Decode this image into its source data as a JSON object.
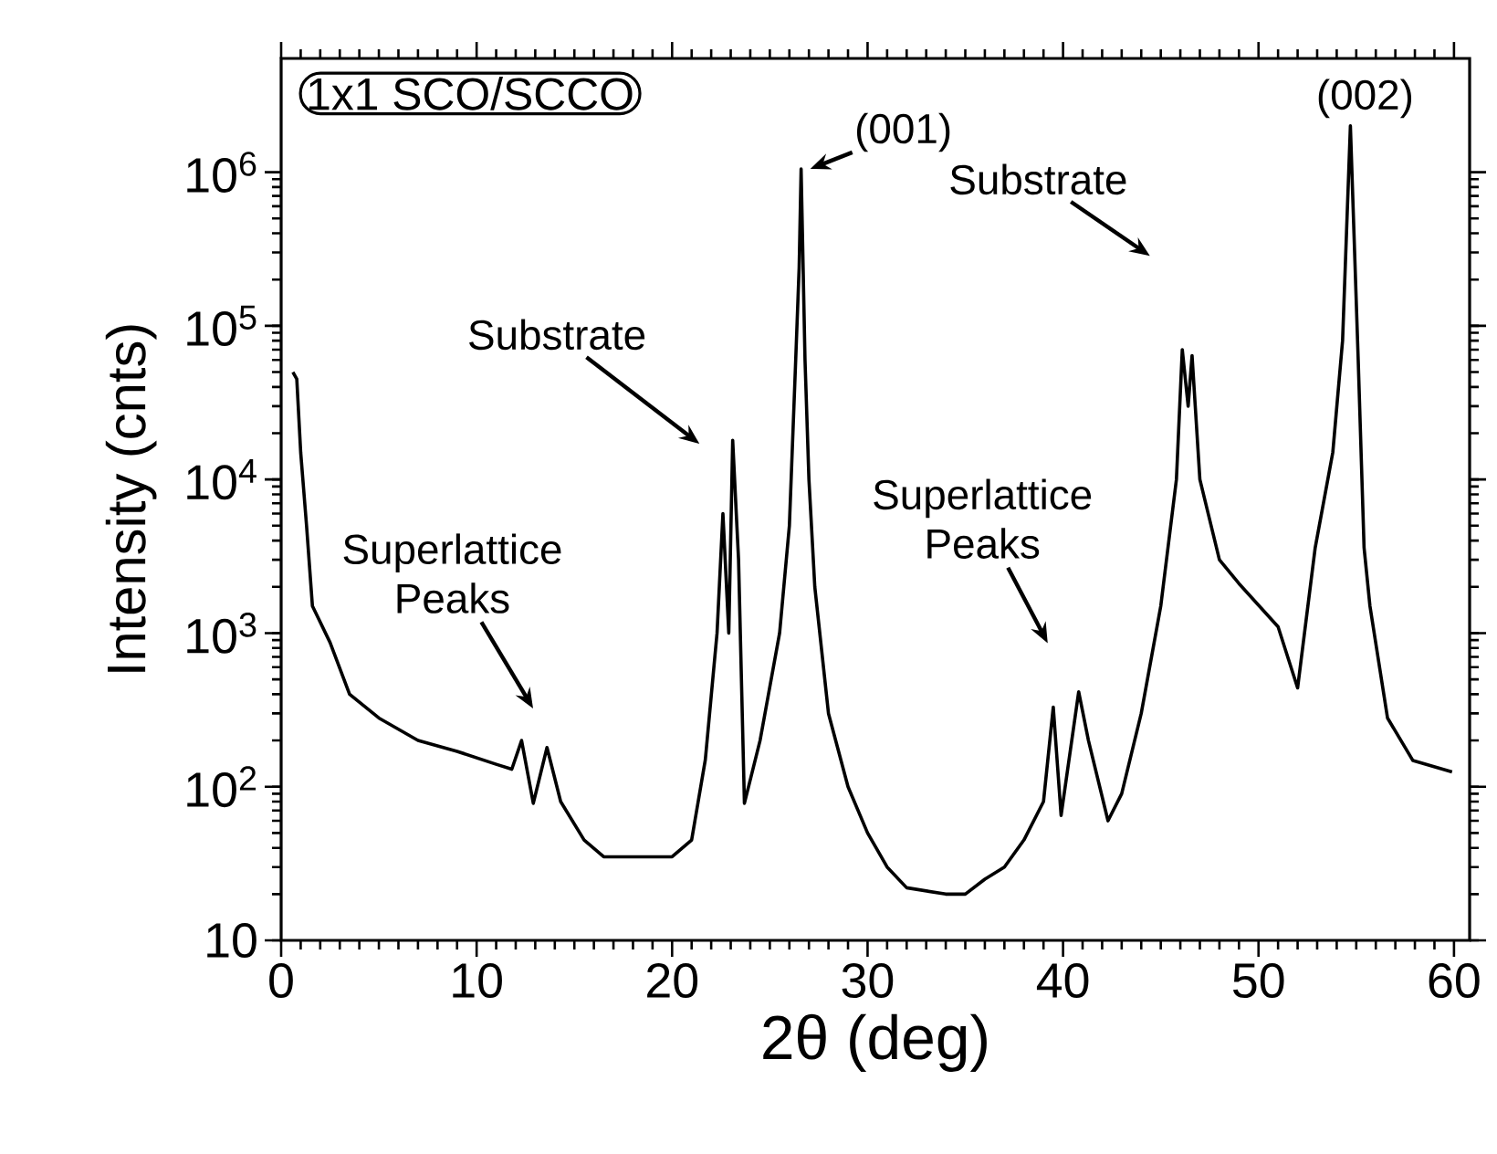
{
  "chart_data": {
    "type": "line",
    "xlabel": "2θ  (deg)",
    "ylabel": "Intensity  (cnts)",
    "color": "#000000",
    "log": "y",
    "xlim": [
      0,
      60.8
    ],
    "ylim": [
      10,
      5500000
    ],
    "xticks": [
      0,
      10,
      20,
      30,
      40,
      50,
      60
    ],
    "yticks": [
      10,
      {
        "value": 100,
        "label": "10$^{2}$"
      },
      {
        "value": 1000,
        "label": "10$^{3}$"
      },
      {
        "value": 10000,
        "label": "10$^{4}$"
      },
      {
        "value": 100000,
        "label": "10$^{5}$"
      },
      {
        "value": 1000000,
        "label": "10$^{6}$"
      }
    ],
    "x": [
      0.6,
      0.8,
      1.0,
      1.3,
      1.6,
      2.5,
      3.5,
      5,
      7,
      9,
      11,
      11.8,
      12.3,
      12.9,
      13.6,
      14.3,
      15.5,
      16.5,
      18,
      20,
      21,
      21.7,
      22.3,
      22.6,
      22.9,
      23.1,
      23.4,
      23.7,
      24.5,
      25.5,
      26.0,
      26.3,
      26.5,
      26.6,
      26.8,
      27.0,
      27.3,
      28,
      29,
      30,
      31,
      32,
      34,
      35,
      36,
      37,
      38,
      39,
      39.5,
      39.9,
      40.8,
      41.3,
      42.3,
      43,
      44,
      45,
      45.8,
      46.1,
      46.4,
      46.6,
      47,
      48,
      49,
      51,
      52,
      52.9,
      53.8,
      54.3,
      54.7,
      55.1,
      55.4,
      55.7,
      56.6,
      57.9,
      59.9
    ],
    "values": [
      50000,
      45000,
      15000,
      5000,
      1500,
      870,
      400,
      280,
      200,
      170,
      140,
      130,
      200,
      78,
      180,
      80,
      45,
      35,
      35,
      35,
      45,
      150,
      1000,
      6000,
      1000,
      18000,
      3000,
      78,
      200,
      1000,
      5000,
      50000,
      240000,
      1050000,
      60000,
      10000,
      2000,
      300,
      100,
      50,
      30,
      22,
      20,
      20,
      25,
      30,
      45,
      80,
      330,
      65,
      415,
      200,
      60,
      90,
      300,
      1500,
      10000,
      70000,
      30000,
      64000,
      10000,
      3000,
      2100,
      1100,
      440,
      3600,
      15000,
      80000,
      2000000,
      60000,
      3600,
      1500,
      280,
      148,
      125
    ],
    "annotations": [
      "1x1  SCO/SCCO",
      {
        "text": "(001)",
        "x": 26.6,
        "y": 1050000
      },
      {
        "text": "(002)",
        "x": 54.7,
        "y": 2000000
      },
      "Substrate",
      "Substrate",
      "Superlattice Peaks",
      "Superlattice Peaks"
    ]
  }
}
